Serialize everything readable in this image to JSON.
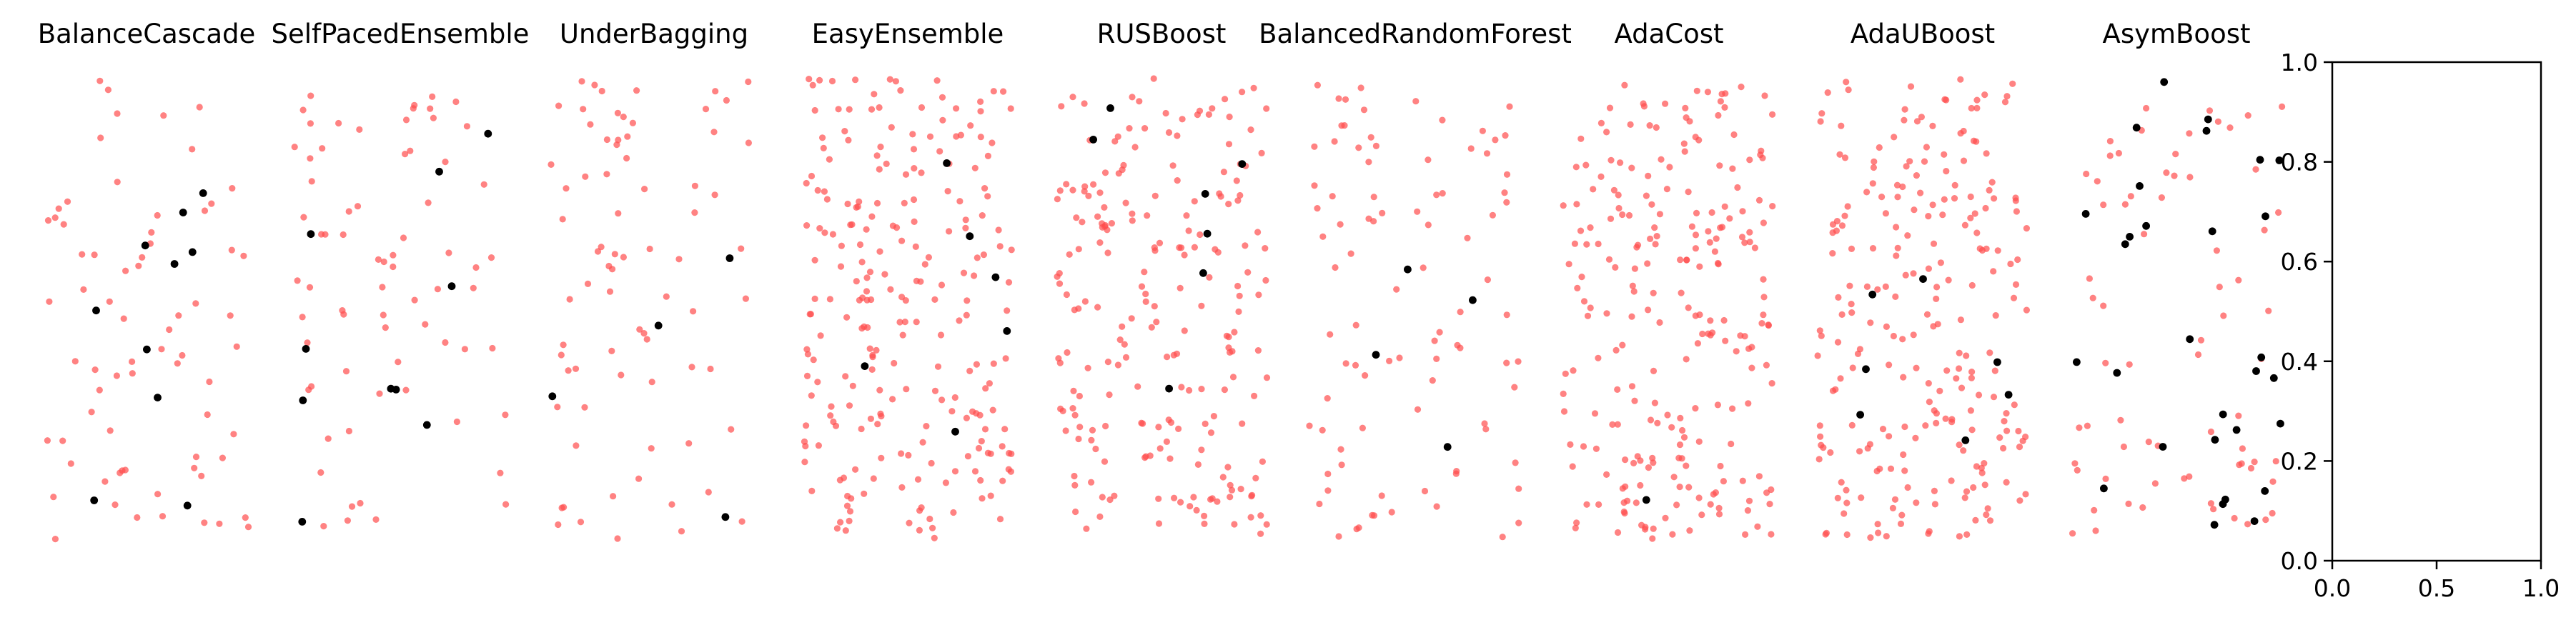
{
  "chart_data": {
    "type": "scatter",
    "layout": "small-multiples",
    "panels": [
      {
        "title": "BalanceCascade",
        "minority_count": 10,
        "majority_count": 70,
        "seed": 11
      },
      {
        "title": "SelfPacedEnsemble",
        "minority_count": 10,
        "majority_count": 70,
        "seed": 23
      },
      {
        "title": "UnderBagging",
        "minority_count": 4,
        "majority_count": 75,
        "seed": 37
      },
      {
        "title": "EasyEnsemble",
        "minority_count": 6,
        "majority_count": 230,
        "seed": 41
      },
      {
        "title": "RUSBoost",
        "minority_count": 7,
        "majority_count": 210,
        "seed": 53
      },
      {
        "title": "BalancedRandomForest",
        "minority_count": 4,
        "majority_count": 90,
        "seed": 67
      },
      {
        "title": "AdaCost",
        "minority_count": 1,
        "majority_count": 230,
        "seed": 71
      },
      {
        "title": "AdaUBoost",
        "minority_count": 7,
        "majority_count": 230,
        "seed": 83
      },
      {
        "title": "AsymBoost",
        "minority_count": 30,
        "majority_count": 70,
        "seed": 97
      }
    ],
    "series": [
      {
        "class": "majority",
        "color": "#ff4d4d",
        "marker": "circle",
        "alpha": 0.7
      },
      {
        "class": "minority",
        "color": "#000000",
        "marker": "circle",
        "alpha": 1.0
      }
    ],
    "empty_axes": {
      "xlim": [
        0.0,
        1.0
      ],
      "ylim": [
        0.0,
        1.0
      ],
      "x_ticks": [
        "0.0",
        "0.5",
        "1.0"
      ],
      "y_ticks": [
        "0.0",
        "0.2",
        "0.4",
        "0.6",
        "0.8",
        "1.0"
      ]
    },
    "grid": false
  }
}
